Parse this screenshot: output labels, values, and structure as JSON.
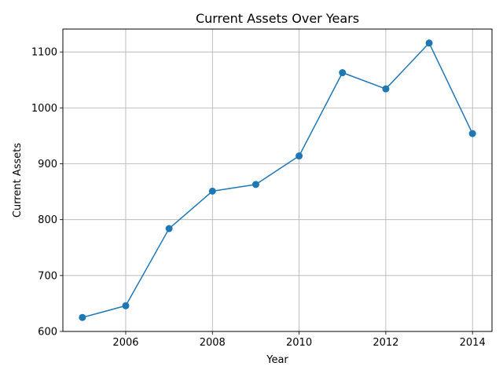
{
  "chart_data": {
    "type": "line",
    "title": "Current Assets Over Years",
    "xlabel": "Year",
    "ylabel": "Current Assets",
    "x": [
      2005,
      2006,
      2007,
      2008,
      2009,
      2010,
      2011,
      2012,
      2013,
      2014
    ],
    "series": [
      {
        "values": [
          625,
          646,
          784,
          851,
          863,
          914,
          1063,
          1034,
          1116,
          954
        ]
      }
    ],
    "xlim": [
      2004.55,
      2014.45
    ],
    "ylim": [
      600,
      1141
    ],
    "xticks": [
      2006,
      2008,
      2010,
      2012,
      2014
    ],
    "yticks": [
      600,
      700,
      800,
      900,
      1000,
      1100
    ],
    "grid": true,
    "marker": "circle",
    "colors": {
      "series": "#1f77b4",
      "grid": "#b0b0b0",
      "axes": "#000000"
    }
  }
}
